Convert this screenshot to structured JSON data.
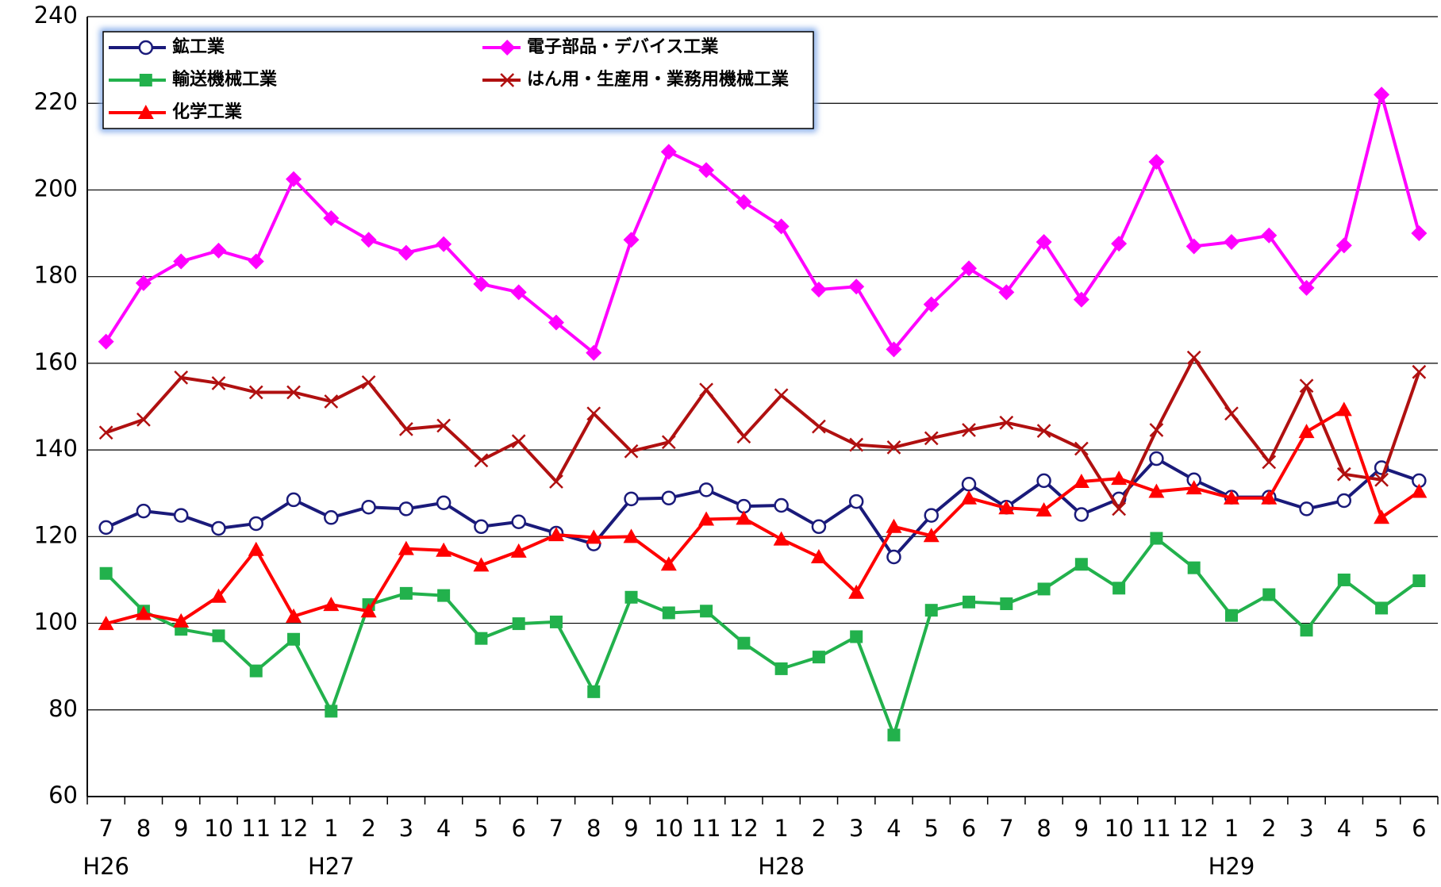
{
  "chart_data": {
    "type": "line",
    "categories": [
      "7",
      "8",
      "9",
      "10",
      "11",
      "12",
      "1",
      "2",
      "3",
      "4",
      "5",
      "6",
      "7",
      "8",
      "9",
      "10",
      "11",
      "12",
      "1",
      "2",
      "3",
      "4",
      "5",
      "6",
      "7",
      "8",
      "9",
      "10",
      "11",
      "12",
      "1",
      "2",
      "3",
      "4",
      "5",
      "6"
    ],
    "category_groups": [
      "H26",
      null,
      null,
      null,
      null,
      null,
      "H27",
      null,
      null,
      null,
      null,
      null,
      null,
      null,
      null,
      null,
      null,
      null,
      "H28",
      null,
      null,
      null,
      null,
      null,
      null,
      null,
      null,
      null,
      null,
      null,
      "H29",
      null,
      null,
      null,
      null,
      null
    ],
    "ylim": [
      60,
      240
    ],
    "yticks": [
      60,
      80,
      100,
      120,
      140,
      160,
      180,
      200,
      220,
      240
    ],
    "grid": true,
    "legend": "upper left",
    "series": [
      {
        "name": "鉱工業",
        "color": "#1a1a7a",
        "marker": "circle",
        "values": [
          122.1,
          125.9,
          124.9,
          121.9,
          123,
          128.5,
          124.4,
          126.8,
          126.4,
          127.8,
          122.3,
          123.4,
          120.8,
          118.3,
          128.7,
          128.9,
          130.8,
          127,
          127.2,
          122.3,
          128.1,
          115.3,
          124.9,
          132.1,
          126.8,
          132.9,
          125.1,
          128.7,
          138,
          133.1,
          129.1,
          129.1,
          126.4,
          128.3,
          135.9,
          132.9
        ]
      },
      {
        "name": "電子部品・デバイス工業",
        "color": "#ff00ff",
        "marker": "diamond",
        "values": [
          165,
          178.5,
          183.5,
          186,
          183.5,
          202.5,
          193.5,
          188.5,
          185.5,
          187.5,
          178.3,
          176.4,
          169.4,
          162.4,
          188.5,
          208.8,
          204.6,
          197.2,
          191.6,
          177,
          177.7,
          163.2,
          173.6,
          181.9,
          176.4,
          188,
          174.7,
          187.6,
          206.5,
          187,
          188,
          189.5,
          177.4,
          187.2,
          222,
          190
        ]
      },
      {
        "name": "輸送機械工業",
        "color": "#22b14c",
        "marker": "square",
        "values": [
          111.5,
          102.8,
          98.6,
          97.1,
          89,
          96.3,
          79.7,
          104.3,
          106.9,
          106.4,
          96.5,
          99.9,
          100.3,
          84.2,
          106,
          102.4,
          102.8,
          95.4,
          89.5,
          92.2,
          96.9,
          74.2,
          103,
          104.9,
          104.5,
          107.9,
          113.6,
          108.1,
          119.6,
          112.8,
          101.8,
          106.6,
          98.4,
          110,
          103.5,
          109.8
        ]
      },
      {
        "name": "はん用・生産用・業務用機械工業",
        "color": "#b01010",
        "marker": "x",
        "values": [
          144,
          147,
          156.7,
          155.4,
          153.3,
          153.3,
          151.2,
          155.6,
          144.8,
          145.6,
          137.6,
          142,
          132.7,
          148.4,
          139.7,
          141.8,
          153.9,
          143.1,
          152.6,
          145.4,
          141.2,
          140.6,
          142.7,
          144.6,
          146.3,
          144.4,
          140.3,
          126.4,
          144.6,
          161.3,
          148.4,
          137.2,
          154.8,
          134.4,
          133.1,
          158
        ]
      },
      {
        "name": "化学工業",
        "color": "#ff0000",
        "marker": "triangle",
        "values": [
          99.9,
          102.2,
          100.5,
          106.2,
          117,
          101.6,
          104.3,
          102.8,
          117.2,
          116.8,
          113.4,
          116.6,
          120.4,
          119.8,
          120,
          113.6,
          124,
          124.2,
          119.4,
          115.3,
          107.1,
          122.3,
          120.2,
          128.9,
          126.6,
          126.1,
          132.7,
          133.4,
          130.4,
          131.2,
          128.9,
          128.9,
          144.2,
          149.3,
          124.4,
          130.4
        ]
      }
    ]
  }
}
